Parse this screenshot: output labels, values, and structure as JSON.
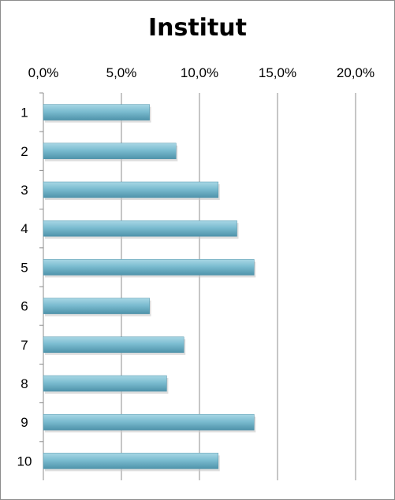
{
  "chart_data": {
    "type": "bar",
    "orientation": "horizontal",
    "title": "Institut",
    "categories": [
      "1",
      "2",
      "3",
      "4",
      "5",
      "6",
      "7",
      "8",
      "9",
      "10"
    ],
    "values": [
      6.8,
      8.5,
      11.2,
      12.4,
      13.5,
      6.8,
      9.0,
      7.9,
      13.5,
      11.2
    ],
    "xlim": [
      0,
      20
    ],
    "x_ticks": [
      "0,0%",
      "5,0%",
      "10,0%",
      "15,0%",
      "20,0%"
    ],
    "x_axis_position": "top",
    "grid": true,
    "legend": "none",
    "colors": {
      "bar": "#7bbcd0",
      "bar_dark": "#4f93aa",
      "grid": "#8c8c8c"
    }
  }
}
